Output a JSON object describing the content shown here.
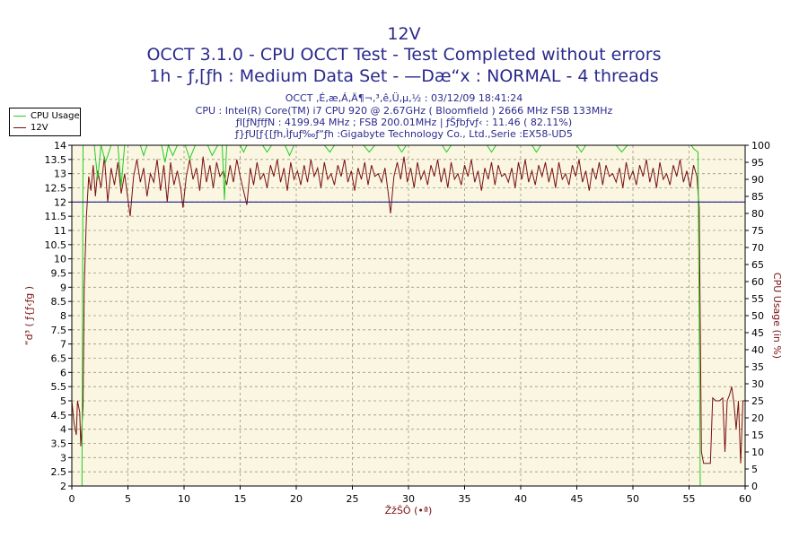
{
  "titles": {
    "line1": "12V",
    "line2": "OCCT 3.1.0 - CPU OCCT Test - Test Completed without errors",
    "line3": "1h - ƒ‚[ƒh : Medium Data Set - —Dæ“x : NORMAL - 4 threads"
  },
  "info": {
    "line1": "OCCT ‚É‚æ‚Á‚Ä¶¬‚³‚ê‚Ü‚µ‚½ : 03/12/09 18:41:24",
    "line2": "CPU : Intel(R) Core(TM) i7 CPU 920 @ 2.67GHz ( Bloomfield ) 2666 MHz FSB 133MHz",
    "line3": "ƒI[ƒNƒfƒN : 4199.94 MHz ; FSB 200.01MHz | ƒŠƒbƒvƒ‹ : 11.46 ( 82.11%)",
    "line4": "ƒ}ƒU[ƒ{[ƒh‚Ìƒuƒ‰ƒ“ƒh :Gigabyte Technology Co., Ltd.,Serie :EX58-UD5"
  },
  "colors": {
    "cpu_usage": "#22cc22",
    "voltage_12v": "#7a1010",
    "threshold": "#1a1a8c",
    "plot_bg": "#faf6e2",
    "grid": "#9a9a7a",
    "title_text": "#2a2a8c"
  },
  "chart_data": {
    "type": "line",
    "xlabel": "ŽžŠÔ (•ª)",
    "ylabel_left": "“d³ ( ƒ{ƒ‹ƒg )",
    "ylabel_right": "CPU Usage (in %)",
    "xlim": [
      0,
      60
    ],
    "ylim_left": [
      2,
      14
    ],
    "ylim_right": [
      0,
      100
    ],
    "x_ticks": [
      "0",
      "5",
      "10",
      "15",
      "20",
      "25",
      "30",
      "35",
      "40",
      "45",
      "50",
      "55",
      "60"
    ],
    "y_ticks_left": [
      "2",
      "2.5",
      "3",
      "3.5",
      "4",
      "4.5",
      "5",
      "5.5",
      "6",
      "6.5",
      "7",
      "7.5",
      "8",
      "8.5",
      "9",
      "9.5",
      "10",
      "10.5",
      "11",
      "11.5",
      "12",
      "12.5",
      "13",
      "13.5",
      "14"
    ],
    "y_ticks_right": [
      "0",
      "5",
      "10",
      "15",
      "20",
      "25",
      "30",
      "35",
      "40",
      "45",
      "50",
      "55",
      "60",
      "65",
      "70",
      "75",
      "80",
      "85",
      "90",
      "95",
      "100"
    ],
    "legend": [
      "CPU Usage",
      "12V"
    ],
    "threshold_12v": 12,
    "series": [
      {
        "name": "12V",
        "axis": "left",
        "points": [
          [
            0,
            5
          ],
          [
            0.2,
            4.2
          ],
          [
            0.4,
            3.8
          ],
          [
            0.5,
            5
          ],
          [
            0.7,
            4.6
          ],
          [
            0.8,
            3.4
          ],
          [
            1,
            4.8
          ],
          [
            1.1,
            9
          ],
          [
            1.3,
            11.5
          ],
          [
            1.5,
            12.9
          ],
          [
            1.7,
            12.4
          ],
          [
            1.9,
            13.3
          ],
          [
            2.1,
            12.2
          ],
          [
            2.3,
            13.1
          ],
          [
            2.6,
            12.5
          ],
          [
            2.9,
            13.6
          ],
          [
            3.2,
            12.0
          ],
          [
            3.5,
            13.2
          ],
          [
            3.8,
            12.6
          ],
          [
            4.1,
            13.4
          ],
          [
            4.4,
            12.3
          ],
          [
            4.7,
            13.0
          ],
          [
            5.0,
            12.1
          ],
          [
            5.2,
            11.5
          ],
          [
            5.5,
            12.9
          ],
          [
            5.8,
            13.5
          ],
          [
            6.1,
            12.7
          ],
          [
            6.4,
            13.2
          ],
          [
            6.7,
            12.2
          ],
          [
            7.0,
            13.0
          ],
          [
            7.3,
            12.7
          ],
          [
            7.6,
            13.5
          ],
          [
            7.9,
            12.4
          ],
          [
            8.2,
            13.3
          ],
          [
            8.5,
            12.0
          ],
          [
            8.8,
            13.4
          ],
          [
            9.1,
            12.6
          ],
          [
            9.4,
            13.1
          ],
          [
            9.7,
            12.5
          ],
          [
            9.9,
            11.8
          ],
          [
            10.2,
            12.9
          ],
          [
            10.5,
            13.5
          ],
          [
            10.8,
            12.8
          ],
          [
            11.1,
            13.2
          ],
          [
            11.4,
            12.4
          ],
          [
            11.7,
            13.6
          ],
          [
            12.0,
            12.7
          ],
          [
            12.3,
            13.3
          ],
          [
            12.6,
            12.5
          ],
          [
            12.9,
            13.4
          ],
          [
            13.2,
            12.9
          ],
          [
            13.5,
            13.1
          ],
          [
            13.8,
            12.6
          ],
          [
            14.1,
            13.3
          ],
          [
            14.4,
            12.7
          ],
          [
            14.7,
            13.5
          ],
          [
            15.0,
            12.9
          ],
          [
            15.3,
            12.4
          ],
          [
            15.6,
            11.9
          ],
          [
            15.9,
            13.2
          ],
          [
            16.2,
            12.6
          ],
          [
            16.5,
            13.4
          ],
          [
            16.8,
            12.8
          ],
          [
            17.1,
            13.0
          ],
          [
            17.4,
            12.5
          ],
          [
            17.7,
            13.3
          ],
          [
            18.0,
            12.9
          ],
          [
            18.3,
            13.5
          ],
          [
            18.6,
            12.7
          ],
          [
            18.9,
            13.2
          ],
          [
            19.2,
            12.4
          ],
          [
            19.5,
            13.4
          ],
          [
            19.8,
            12.8
          ],
          [
            20.1,
            13.1
          ],
          [
            20.4,
            12.6
          ],
          [
            20.7,
            13.3
          ],
          [
            21.0,
            12.7
          ],
          [
            21.3,
            13.5
          ],
          [
            21.6,
            12.9
          ],
          [
            21.9,
            13.2
          ],
          [
            22.2,
            12.5
          ],
          [
            22.5,
            13.4
          ],
          [
            22.8,
            12.8
          ],
          [
            23.1,
            13.0
          ],
          [
            23.4,
            12.6
          ],
          [
            23.7,
            13.3
          ],
          [
            24.0,
            12.9
          ],
          [
            24.3,
            13.5
          ],
          [
            24.6,
            12.7
          ],
          [
            24.9,
            13.1
          ],
          [
            25.2,
            12.4
          ],
          [
            25.5,
            13.2
          ],
          [
            25.8,
            12.8
          ],
          [
            26.1,
            13.4
          ],
          [
            26.4,
            12.6
          ],
          [
            26.7,
            13.3
          ],
          [
            27.0,
            12.9
          ],
          [
            27.3,
            13.0
          ],
          [
            27.6,
            12.7
          ],
          [
            27.9,
            13.2
          ],
          [
            28.2,
            12.3
          ],
          [
            28.4,
            11.6
          ],
          [
            28.7,
            12.9
          ],
          [
            29.0,
            13.4
          ],
          [
            29.3,
            12.8
          ],
          [
            29.6,
            13.6
          ],
          [
            29.9,
            12.7
          ],
          [
            30.2,
            13.2
          ],
          [
            30.5,
            12.5
          ],
          [
            30.8,
            13.4
          ],
          [
            31.1,
            12.8
          ],
          [
            31.4,
            13.1
          ],
          [
            31.7,
            12.6
          ],
          [
            32.0,
            13.3
          ],
          [
            32.3,
            12.9
          ],
          [
            32.6,
            13.5
          ],
          [
            32.9,
            12.7
          ],
          [
            33.2,
            13.2
          ],
          [
            33.5,
            12.5
          ],
          [
            33.8,
            13.4
          ],
          [
            34.1,
            12.8
          ],
          [
            34.4,
            13.0
          ],
          [
            34.7,
            12.6
          ],
          [
            35.0,
            13.3
          ],
          [
            35.3,
            12.9
          ],
          [
            35.6,
            13.5
          ],
          [
            35.9,
            12.7
          ],
          [
            36.2,
            13.1
          ],
          [
            36.5,
            12.4
          ],
          [
            36.8,
            13.2
          ],
          [
            37.1,
            12.8
          ],
          [
            37.4,
            13.4
          ],
          [
            37.7,
            12.6
          ],
          [
            38.0,
            13.3
          ],
          [
            38.3,
            12.9
          ],
          [
            38.6,
            13.0
          ],
          [
            38.9,
            12.7
          ],
          [
            39.2,
            13.2
          ],
          [
            39.5,
            12.5
          ],
          [
            39.8,
            13.4
          ],
          [
            40.1,
            12.8
          ],
          [
            40.4,
            13.5
          ],
          [
            40.7,
            12.7
          ],
          [
            41.0,
            13.1
          ],
          [
            41.3,
            12.6
          ],
          [
            41.6,
            13.3
          ],
          [
            41.9,
            12.9
          ],
          [
            42.2,
            13.4
          ],
          [
            42.5,
            12.7
          ],
          [
            42.8,
            13.2
          ],
          [
            43.1,
            12.5
          ],
          [
            43.4,
            13.4
          ],
          [
            43.7,
            12.8
          ],
          [
            44.0,
            13.0
          ],
          [
            44.3,
            12.6
          ],
          [
            44.6,
            13.3
          ],
          [
            44.9,
            12.9
          ],
          [
            45.2,
            13.5
          ],
          [
            45.5,
            12.7
          ],
          [
            45.8,
            13.1
          ],
          [
            46.1,
            12.4
          ],
          [
            46.4,
            13.2
          ],
          [
            46.7,
            12.8
          ],
          [
            47.0,
            13.4
          ],
          [
            47.3,
            12.6
          ],
          [
            47.6,
            13.3
          ],
          [
            47.9,
            12.9
          ],
          [
            48.2,
            13.0
          ],
          [
            48.5,
            12.7
          ],
          [
            48.8,
            13.2
          ],
          [
            49.1,
            12.5
          ],
          [
            49.4,
            13.4
          ],
          [
            49.7,
            12.8
          ],
          [
            50.0,
            13.1
          ],
          [
            50.3,
            12.6
          ],
          [
            50.6,
            13.3
          ],
          [
            50.9,
            12.9
          ],
          [
            51.2,
            13.5
          ],
          [
            51.5,
            12.7
          ],
          [
            51.8,
            13.2
          ],
          [
            52.1,
            12.5
          ],
          [
            52.4,
            13.4
          ],
          [
            52.7,
            12.8
          ],
          [
            53.0,
            13.0
          ],
          [
            53.3,
            12.6
          ],
          [
            53.6,
            13.3
          ],
          [
            53.9,
            12.9
          ],
          [
            54.2,
            13.5
          ],
          [
            54.5,
            12.7
          ],
          [
            54.8,
            13.1
          ],
          [
            55.1,
            12.5
          ],
          [
            55.4,
            13.3
          ],
          [
            55.7,
            12.9
          ],
          [
            55.9,
            11.8
          ],
          [
            56.1,
            3.2
          ],
          [
            56.3,
            2.8
          ],
          [
            56.6,
            2.8
          ],
          [
            56.9,
            2.8
          ],
          [
            57.1,
            5.1
          ],
          [
            57.4,
            5.0
          ],
          [
            57.7,
            5.0
          ],
          [
            58.0,
            5.1
          ],
          [
            58.2,
            3.2
          ],
          [
            58.4,
            5.0
          ],
          [
            58.6,
            5.2
          ],
          [
            58.8,
            5.5
          ],
          [
            59.0,
            4.9
          ],
          [
            59.2,
            4.0
          ],
          [
            59.4,
            5.0
          ],
          [
            59.6,
            2.8
          ],
          [
            59.8,
            5.0
          ],
          [
            60,
            5.0
          ]
        ]
      },
      {
        "name": "CPU Usage",
        "axis": "right",
        "points": [
          [
            0,
            0
          ],
          [
            0.9,
            0
          ],
          [
            1.0,
            100
          ],
          [
            2.0,
            100
          ],
          [
            2.3,
            90
          ],
          [
            2.6,
            100
          ],
          [
            3.0,
            95
          ],
          [
            3.5,
            100
          ],
          [
            4.1,
            100
          ],
          [
            4.4,
            88
          ],
          [
            4.7,
            100
          ],
          [
            6.1,
            100
          ],
          [
            6.4,
            97
          ],
          [
            6.7,
            100
          ],
          [
            8.0,
            100
          ],
          [
            8.3,
            95
          ],
          [
            8.6,
            100
          ],
          [
            9.0,
            97
          ],
          [
            9.4,
            100
          ],
          [
            10.1,
            100
          ],
          [
            10.5,
            96
          ],
          [
            11.0,
            100
          ],
          [
            12.1,
            100
          ],
          [
            12.5,
            97
          ],
          [
            13.0,
            100
          ],
          [
            13.4,
            100
          ],
          [
            13.6,
            84
          ],
          [
            13.8,
            100
          ],
          [
            15.0,
            100
          ],
          [
            15.3,
            98
          ],
          [
            15.6,
            100
          ],
          [
            17.0,
            100
          ],
          [
            17.4,
            98
          ],
          [
            17.8,
            100
          ],
          [
            19.0,
            100
          ],
          [
            19.4,
            97
          ],
          [
            19.8,
            100
          ],
          [
            22.5,
            100
          ],
          [
            23.0,
            98
          ],
          [
            23.4,
            100
          ],
          [
            26.0,
            100
          ],
          [
            26.5,
            98
          ],
          [
            27.0,
            100
          ],
          [
            29.0,
            100
          ],
          [
            29.4,
            98
          ],
          [
            29.8,
            100
          ],
          [
            33.0,
            100
          ],
          [
            33.4,
            98
          ],
          [
            33.8,
            100
          ],
          [
            37.0,
            100
          ],
          [
            37.4,
            98
          ],
          [
            37.8,
            100
          ],
          [
            41.0,
            100
          ],
          [
            41.4,
            98
          ],
          [
            41.8,
            100
          ],
          [
            45.0,
            100
          ],
          [
            45.4,
            98
          ],
          [
            45.8,
            100
          ],
          [
            48.5,
            100
          ],
          [
            49.0,
            98
          ],
          [
            49.5,
            100
          ],
          [
            55.2,
            100
          ],
          [
            55.4,
            99
          ],
          [
            55.8,
            98
          ],
          [
            55.9,
            50
          ],
          [
            56.0,
            0
          ],
          [
            60,
            0
          ]
        ]
      }
    ]
  }
}
